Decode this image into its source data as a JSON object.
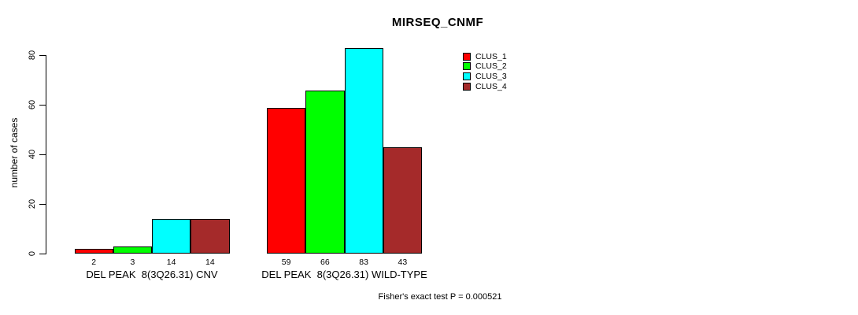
{
  "chart": {
    "title": "MIRSEQ_CNMF",
    "ylabel": "number of cases",
    "footer": "Fisher's exact test P = 0.000521"
  },
  "chart_data": {
    "type": "bar",
    "grouped": true,
    "title": "MIRSEQ_CNMF",
    "xlabel": "",
    "ylabel": "number of cases",
    "ylim": [
      0,
      80
    ],
    "yticks": [
      0,
      20,
      40,
      60,
      80
    ],
    "grid": false,
    "legend_position": "top-right",
    "bar_border_color": "#000000",
    "categories": [
      "DEL PEAK  8(3Q26.31) CNV",
      "DEL PEAK  8(3Q26.31) WILD-TYPE"
    ],
    "series": [
      {
        "name": "CLUS_1",
        "color": "#ff0000",
        "values": [
          2,
          59
        ]
      },
      {
        "name": "CLUS_2",
        "color": "#00ff00",
        "values": [
          3,
          66
        ]
      },
      {
        "name": "CLUS_3",
        "color": "#00ffff",
        "values": [
          14,
          83
        ]
      },
      {
        "name": "CLUS_4",
        "color": "#a52a2a",
        "values": [
          14,
          43
        ]
      }
    ],
    "value_labels": [
      [
        2,
        3,
        14,
        14
      ],
      [
        59,
        66,
        83,
        43
      ]
    ],
    "annotation": "Fisher's exact test P = 0.000521"
  }
}
